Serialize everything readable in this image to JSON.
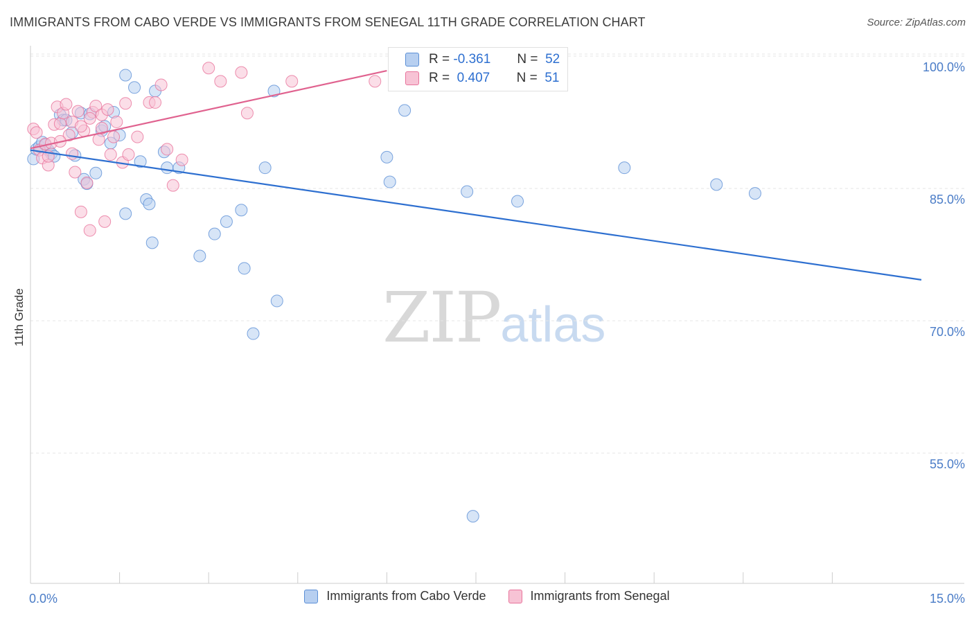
{
  "title": "IMMIGRANTS FROM CABO VERDE VS IMMIGRANTS FROM SENEGAL 11TH GRADE CORRELATION CHART",
  "source": "Source: ZipAtlas.com",
  "watermark": {
    "zip": "ZIP",
    "atlas": "atlas"
  },
  "colors": {
    "blue": "#5b8fd6",
    "blue_fill": "#b7cff0",
    "pink": "#e8739b",
    "pink_fill": "#f7c3d5",
    "axis_text": "#4a7cc7",
    "grid": "#e6e6e6"
  },
  "legend_top": {
    "rows": [
      {
        "r_label": "R =",
        "r_value": "-0.361",
        "n_label": "N =",
        "n_value": "52"
      },
      {
        "r_label": "R =",
        "r_value": "0.407",
        "n_label": "N =",
        "n_value": "51"
      }
    ]
  },
  "chart_data": {
    "type": "scatter",
    "title": "IMMIGRANTS FROM CABO VERDE VS IMMIGRANTS FROM SENEGAL 11TH GRADE CORRELATION CHART",
    "xlabel": "",
    "ylabel": "11th Grade",
    "xlim": [
      0,
      15
    ],
    "ylim": [
      41.5,
      102
    ],
    "x_tick_labels": [
      {
        "value": 0,
        "label": "0.0%"
      },
      {
        "value": 15,
        "label": "15.0%"
      }
    ],
    "x_minor_ticks": [
      1.5,
      3,
      4.5,
      6,
      7.5,
      9,
      10.5,
      12,
      13.5
    ],
    "y_ticks": [
      {
        "value": 100,
        "label": "100.0%"
      },
      {
        "value": 85,
        "label": "85.0%"
      },
      {
        "value": 70,
        "label": "70.0%"
      },
      {
        "value": 55,
        "label": "55.0%"
      }
    ],
    "series": [
      {
        "name": "Immigrants from Cabo Verde",
        "color": "blue",
        "trend": {
          "x": [
            0,
            15
          ],
          "y": [
            90.6,
            75.9
          ]
        },
        "points": [
          [
            0.05,
            89.6
          ],
          [
            0.1,
            90.7
          ],
          [
            0.15,
            91.0
          ],
          [
            0.2,
            91.5
          ],
          [
            0.25,
            91.2
          ],
          [
            0.3,
            90.6
          ],
          [
            0.35,
            90.2
          ],
          [
            0.4,
            89.9
          ],
          [
            0.5,
            94.6
          ],
          [
            0.55,
            94.0
          ],
          [
            0.6,
            94.0
          ],
          [
            0.7,
            92.6
          ],
          [
            0.75,
            90.0
          ],
          [
            0.85,
            94.8
          ],
          [
            0.9,
            87.3
          ],
          [
            0.95,
            86.8
          ],
          [
            1.0,
            94.7
          ],
          [
            1.1,
            88.0
          ],
          [
            1.2,
            92.8
          ],
          [
            1.25,
            93.3
          ],
          [
            1.35,
            91.4
          ],
          [
            1.4,
            94.9
          ],
          [
            1.5,
            92.3
          ],
          [
            1.6,
            83.4
          ],
          [
            1.6,
            99.1
          ],
          [
            1.75,
            97.7
          ],
          [
            1.85,
            89.3
          ],
          [
            1.95,
            85.0
          ],
          [
            2.0,
            84.5
          ],
          [
            2.05,
            80.1
          ],
          [
            2.1,
            97.3
          ],
          [
            2.25,
            90.4
          ],
          [
            2.3,
            88.6
          ],
          [
            2.5,
            88.6
          ],
          [
            2.85,
            78.6
          ],
          [
            3.1,
            81.1
          ],
          [
            3.3,
            82.5
          ],
          [
            3.55,
            83.8
          ],
          [
            3.6,
            77.2
          ],
          [
            3.75,
            69.8
          ],
          [
            3.95,
            88.6
          ],
          [
            4.1,
            97.3
          ],
          [
            4.15,
            73.5
          ],
          [
            6.0,
            89.8
          ],
          [
            6.05,
            87.0
          ],
          [
            6.3,
            95.1
          ],
          [
            7.35,
            85.9
          ],
          [
            7.45,
            49.1
          ],
          [
            8.2,
            84.8
          ],
          [
            10.0,
            88.6
          ],
          [
            11.55,
            86.7
          ],
          [
            12.2,
            85.7
          ]
        ]
      },
      {
        "name": "Immigrants from Senegal",
        "color": "pink",
        "trend": {
          "x": [
            0,
            6.0
          ],
          "y": [
            90.8,
            99.6
          ]
        },
        "points": [
          [
            0.05,
            93.0
          ],
          [
            0.1,
            92.6
          ],
          [
            0.15,
            90.6
          ],
          [
            0.2,
            89.7
          ],
          [
            0.25,
            91.3
          ],
          [
            0.3,
            88.9
          ],
          [
            0.35,
            91.4
          ],
          [
            0.4,
            93.5
          ],
          [
            0.45,
            95.5
          ],
          [
            0.5,
            93.6
          ],
          [
            0.55,
            94.8
          ],
          [
            0.6,
            95.8
          ],
          [
            0.65,
            92.3
          ],
          [
            0.7,
            93.8
          ],
          [
            0.75,
            88.1
          ],
          [
            0.8,
            95.0
          ],
          [
            0.85,
            83.6
          ],
          [
            0.9,
            92.8
          ],
          [
            0.95,
            86.9
          ],
          [
            1.0,
            81.5
          ],
          [
            1.05,
            94.9
          ],
          [
            1.1,
            95.6
          ],
          [
            1.15,
            91.8
          ],
          [
            1.2,
            94.6
          ],
          [
            1.25,
            82.5
          ],
          [
            1.3,
            95.2
          ],
          [
            1.35,
            90.1
          ],
          [
            1.4,
            92.1
          ],
          [
            1.45,
            93.8
          ],
          [
            1.55,
            89.2
          ],
          [
            1.6,
            95.9
          ],
          [
            1.65,
            90.1
          ],
          [
            1.8,
            92.1
          ],
          [
            2.0,
            96.0
          ],
          [
            2.1,
            96.0
          ],
          [
            2.2,
            98.0
          ],
          [
            2.3,
            90.7
          ],
          [
            2.4,
            86.6
          ],
          [
            2.55,
            89.5
          ],
          [
            3.0,
            99.9
          ],
          [
            3.2,
            98.4
          ],
          [
            3.55,
            99.4
          ],
          [
            3.65,
            94.8
          ],
          [
            4.4,
            98.4
          ],
          [
            5.8,
            98.4
          ],
          [
            0.3,
            89.9
          ],
          [
            0.5,
            91.6
          ],
          [
            0.7,
            90.2
          ],
          [
            0.85,
            93.3
          ],
          [
            1.0,
            94.2
          ],
          [
            1.2,
            93.1
          ]
        ]
      }
    ],
    "legend": [
      "Immigrants from Cabo Verde",
      "Immigrants from Senegal"
    ]
  },
  "legend_bottom": [
    {
      "label": "Immigrants from Cabo Verde",
      "color": "blue"
    },
    {
      "label": "Immigrants from Senegal",
      "color": "pink"
    }
  ]
}
